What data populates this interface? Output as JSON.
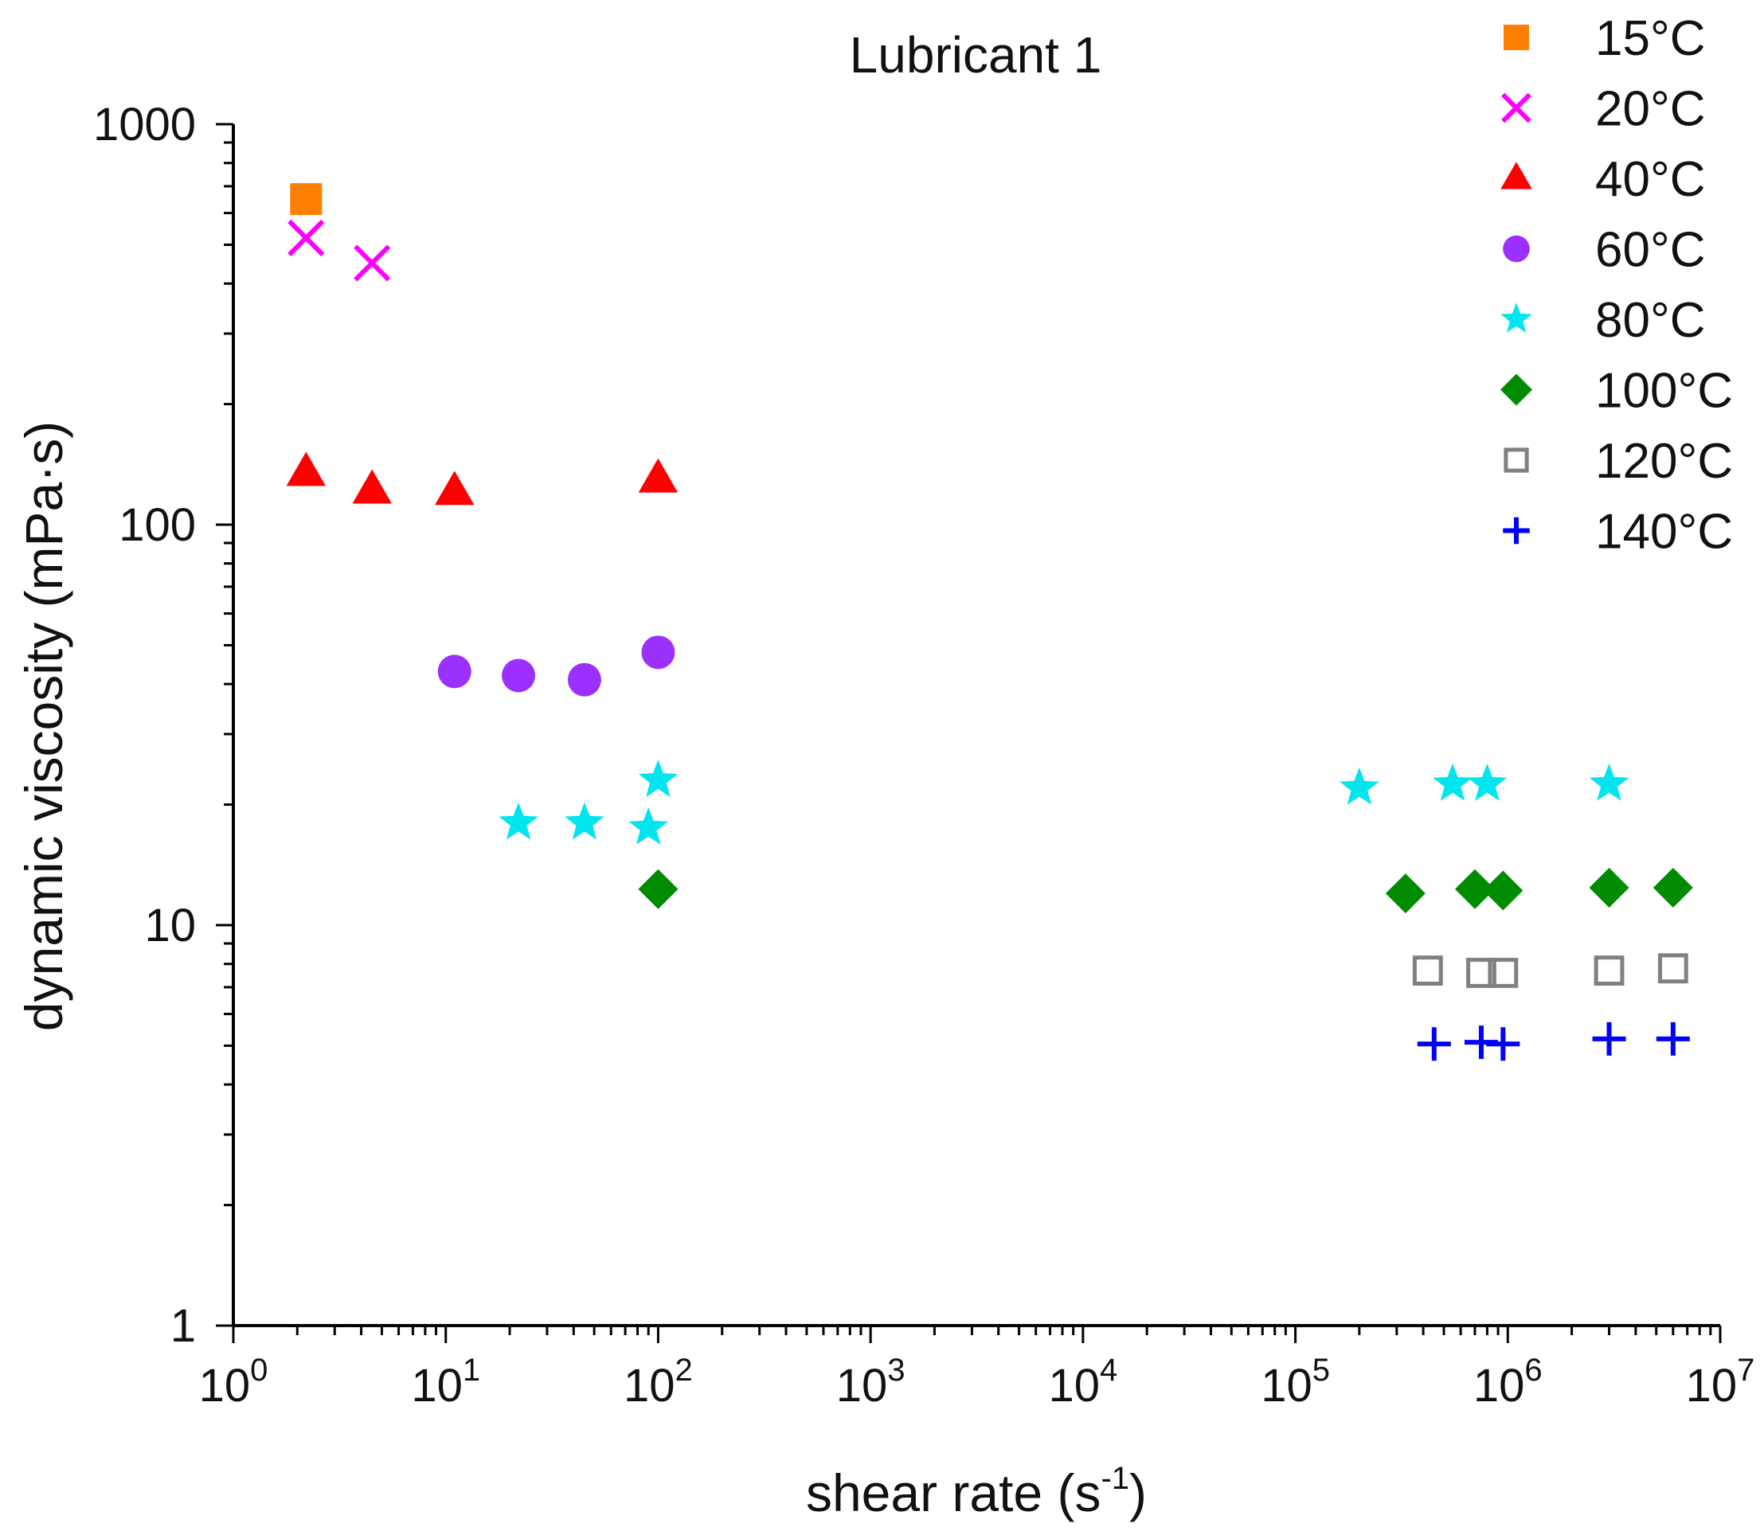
{
  "chart_data": {
    "type": "scatter",
    "title": "Lubricant 1",
    "xlabel": "shear rate (s",
    "xlabel_sup": "-1",
    "xlabel_tail": ")",
    "ylabel": "dynamic viscosity (mPa·s)",
    "xscale": "log",
    "yscale": "log",
    "xlim": [
      1,
      10000000
    ],
    "ylim": [
      1,
      1000
    ],
    "x_ticks": [
      {
        "base": "10",
        "exp": "0"
      },
      {
        "base": "10",
        "exp": "1"
      },
      {
        "base": "10",
        "exp": "2"
      },
      {
        "base": "10",
        "exp": "3"
      },
      {
        "base": "10",
        "exp": "4"
      },
      {
        "base": "10",
        "exp": "5"
      },
      {
        "base": "10",
        "exp": "6"
      },
      {
        "base": "10",
        "exp": "7"
      }
    ],
    "y_ticks": [
      "1",
      "10",
      "100",
      "1000"
    ],
    "legend_position": "top-right",
    "series": [
      {
        "name": "15°C",
        "marker": "square",
        "color": "#ff8000",
        "points": [
          [
            2.2,
            650
          ]
        ]
      },
      {
        "name": "20°C",
        "marker": "x",
        "color": "#ff00ff",
        "points": [
          [
            2.2,
            520
          ],
          [
            4.5,
            450
          ]
        ]
      },
      {
        "name": "40°C",
        "marker": "triangle",
        "color": "#ff0000",
        "points": [
          [
            2.2,
            135
          ],
          [
            4.5,
            122
          ],
          [
            11,
            121
          ],
          [
            100,
            130
          ]
        ]
      },
      {
        "name": "60°C",
        "marker": "circle",
        "color": "#9b30ff",
        "points": [
          [
            11,
            43
          ],
          [
            22,
            42
          ],
          [
            45,
            41
          ],
          [
            100,
            48
          ]
        ]
      },
      {
        "name": "80°C",
        "marker": "star",
        "color": "#00e5ee",
        "points": [
          [
            22,
            18
          ],
          [
            45,
            18
          ],
          [
            90,
            17.5
          ],
          [
            100,
            23
          ],
          [
            200000,
            22
          ],
          [
            550000,
            22.5
          ],
          [
            800000,
            22.5
          ],
          [
            3000000,
            22.5
          ]
        ]
      },
      {
        "name": "100°C",
        "marker": "diamond",
        "color": "#008b00",
        "points": [
          [
            100,
            12.3
          ],
          [
            330000,
            12
          ],
          [
            700000,
            12.3
          ],
          [
            950000,
            12.2
          ],
          [
            3000000,
            12.4
          ],
          [
            6000000,
            12.4
          ]
        ]
      },
      {
        "name": "120°C",
        "marker": "open-square",
        "color": "#808080",
        "points": [
          [
            420000,
            7.7
          ],
          [
            750000,
            7.6
          ],
          [
            950000,
            7.6
          ],
          [
            3000000,
            7.7
          ],
          [
            6000000,
            7.8
          ]
        ]
      },
      {
        "name": "140°C",
        "marker": "plus",
        "color": "#0000ff",
        "points": [
          [
            450000,
            5.05
          ],
          [
            750000,
            5.1
          ],
          [
            950000,
            5.05
          ],
          [
            3000000,
            5.2
          ],
          [
            6000000,
            5.2
          ]
        ]
      }
    ]
  }
}
